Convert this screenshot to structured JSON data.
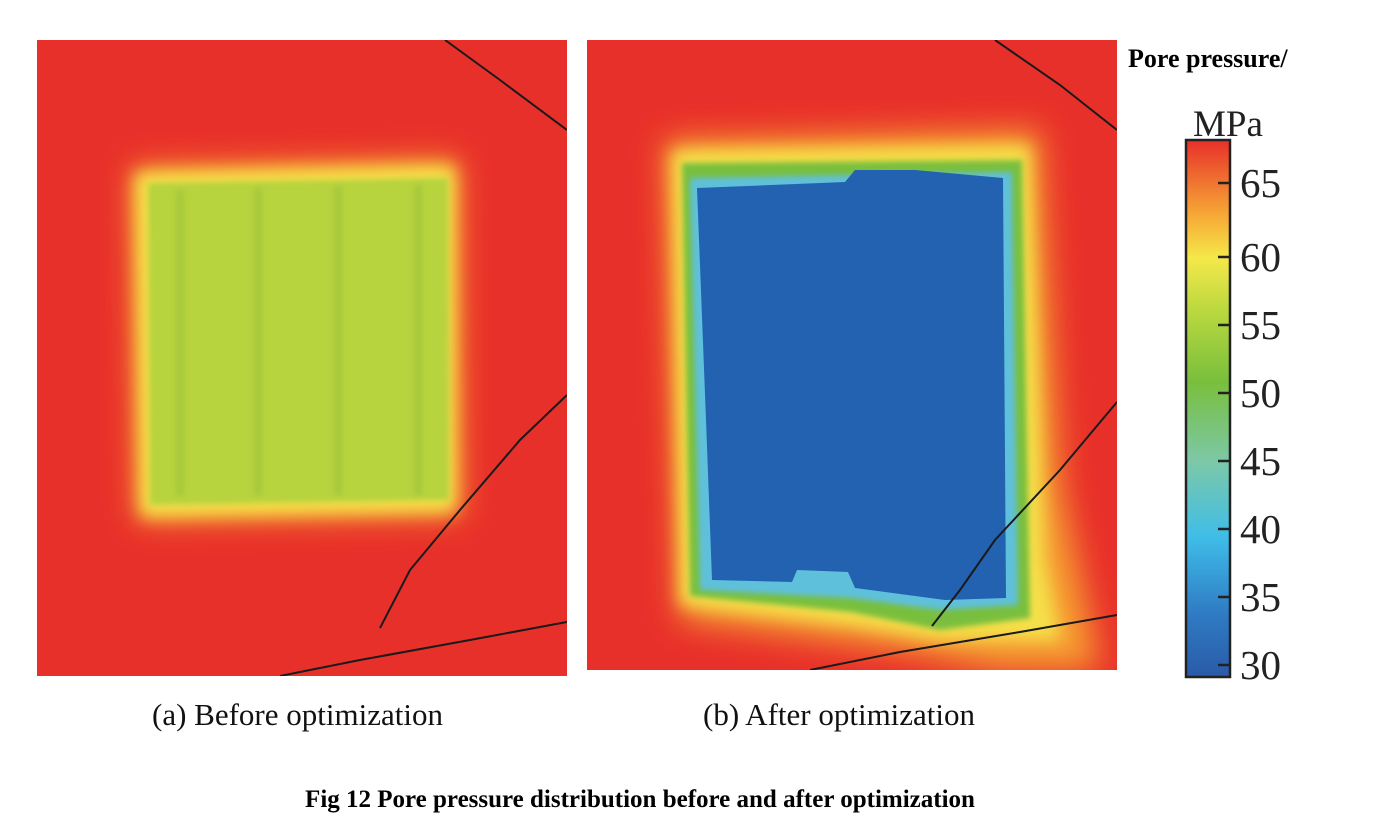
{
  "chart_data": {
    "type": "heatmap",
    "title": "Fig 12 Pore pressure distribution before and after optimization",
    "panels": [
      {
        "label": "(a) Before optimization",
        "region_pressure_MPa": {
          "surrounding": 66,
          "treated_zone": 54
        }
      },
      {
        "label": "(b) After optimization",
        "region_pressure_MPa": {
          "surrounding": 66,
          "treated_zone": 32,
          "rim": 48
        }
      }
    ],
    "colorbar": {
      "title": "Pore pressure/",
      "unit": "MPa",
      "ticks": [
        "65",
        "60",
        "55",
        "50",
        "45",
        "40",
        "35",
        "30"
      ],
      "range": [
        30,
        67
      ],
      "colors": [
        "#2a5aa8",
        "#3fb8e6",
        "#7fc8a0",
        "#7cc043",
        "#c4dc3c",
        "#f5e64a",
        "#f7a535",
        "#e8302a"
      ]
    }
  }
}
